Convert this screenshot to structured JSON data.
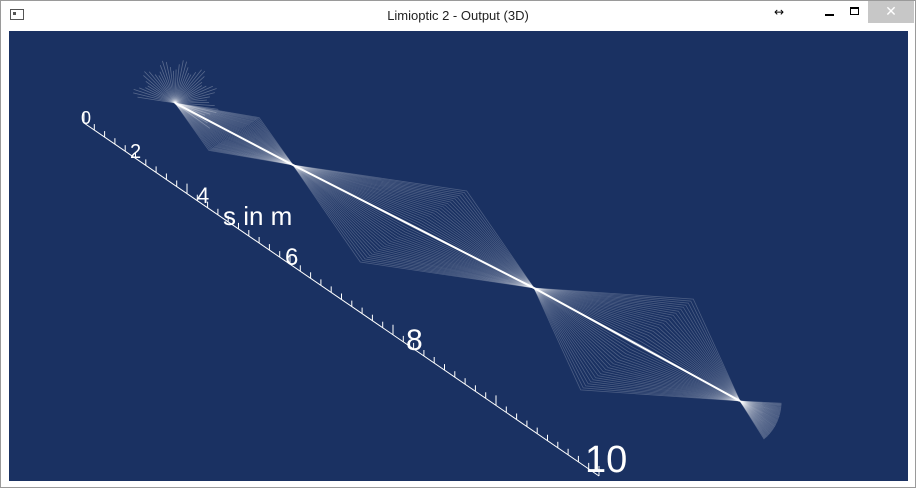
{
  "window": {
    "title": "Limioptic 2 - Output (3D)",
    "controls": {
      "resize": "↔",
      "close": "✕"
    }
  },
  "plot": {
    "axis_label": "s in m",
    "ticks": [
      "0",
      "2",
      "4",
      "6",
      "8",
      "10"
    ],
    "colors": {
      "background": "#1a3162",
      "rays": "#ffffff",
      "axis": "#ffffff"
    }
  }
}
